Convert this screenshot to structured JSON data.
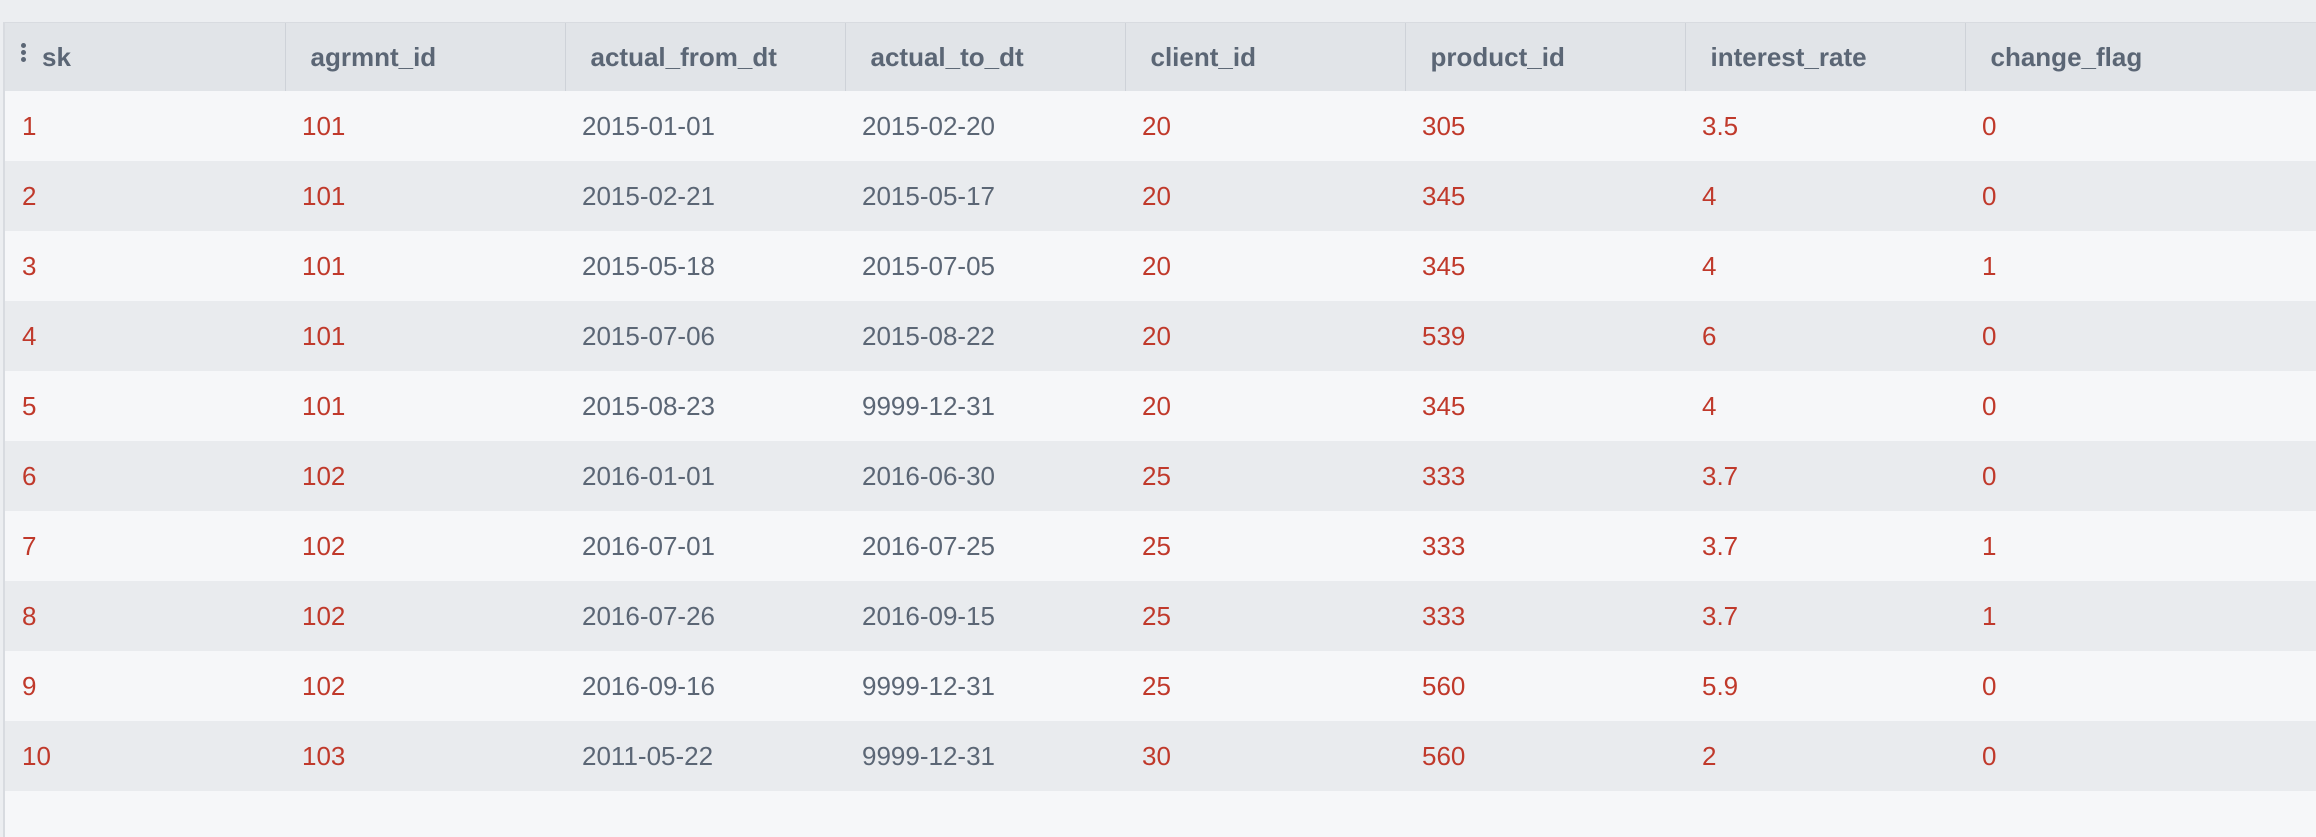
{
  "table": {
    "columns": [
      "sk",
      "agrmnt_id",
      "actual_from_dt",
      "actual_to_dt",
      "client_id",
      "product_id",
      "interest_rate",
      "change_flag"
    ],
    "rows": [
      [
        "1",
        "101",
        "2015-01-01",
        "2015-02-20",
        "20",
        "305",
        "3.5",
        "0"
      ],
      [
        "2",
        "101",
        "2015-02-21",
        "2015-05-17",
        "20",
        "345",
        "4",
        "0"
      ],
      [
        "3",
        "101",
        "2015-05-18",
        "2015-07-05",
        "20",
        "345",
        "4",
        "1"
      ],
      [
        "4",
        "101",
        "2015-07-06",
        "2015-08-22",
        "20",
        "539",
        "6",
        "0"
      ],
      [
        "5",
        "101",
        "2015-08-23",
        "9999-12-31",
        "20",
        "345",
        "4",
        "0"
      ],
      [
        "6",
        "102",
        "2016-01-01",
        "2016-06-30",
        "25",
        "333",
        "3.7",
        "0"
      ],
      [
        "7",
        "102",
        "2016-07-01",
        "2016-07-25",
        "25",
        "333",
        "3.7",
        "1"
      ],
      [
        "8",
        "102",
        "2016-07-26",
        "2016-09-15",
        "25",
        "333",
        "3.7",
        "1"
      ],
      [
        "9",
        "102",
        "2016-09-16",
        "9999-12-31",
        "25",
        "560",
        "5.9",
        "0"
      ],
      [
        "10",
        "103",
        "2011-05-22",
        "9999-12-31",
        "30",
        "560",
        "2",
        "0"
      ]
    ]
  },
  "icons": {
    "column_menu": "vertical-dots-icon"
  },
  "colors": {
    "numeric_text": "#c0392b",
    "date_text": "#5b6675",
    "header_bg": "#e1e4e8"
  }
}
